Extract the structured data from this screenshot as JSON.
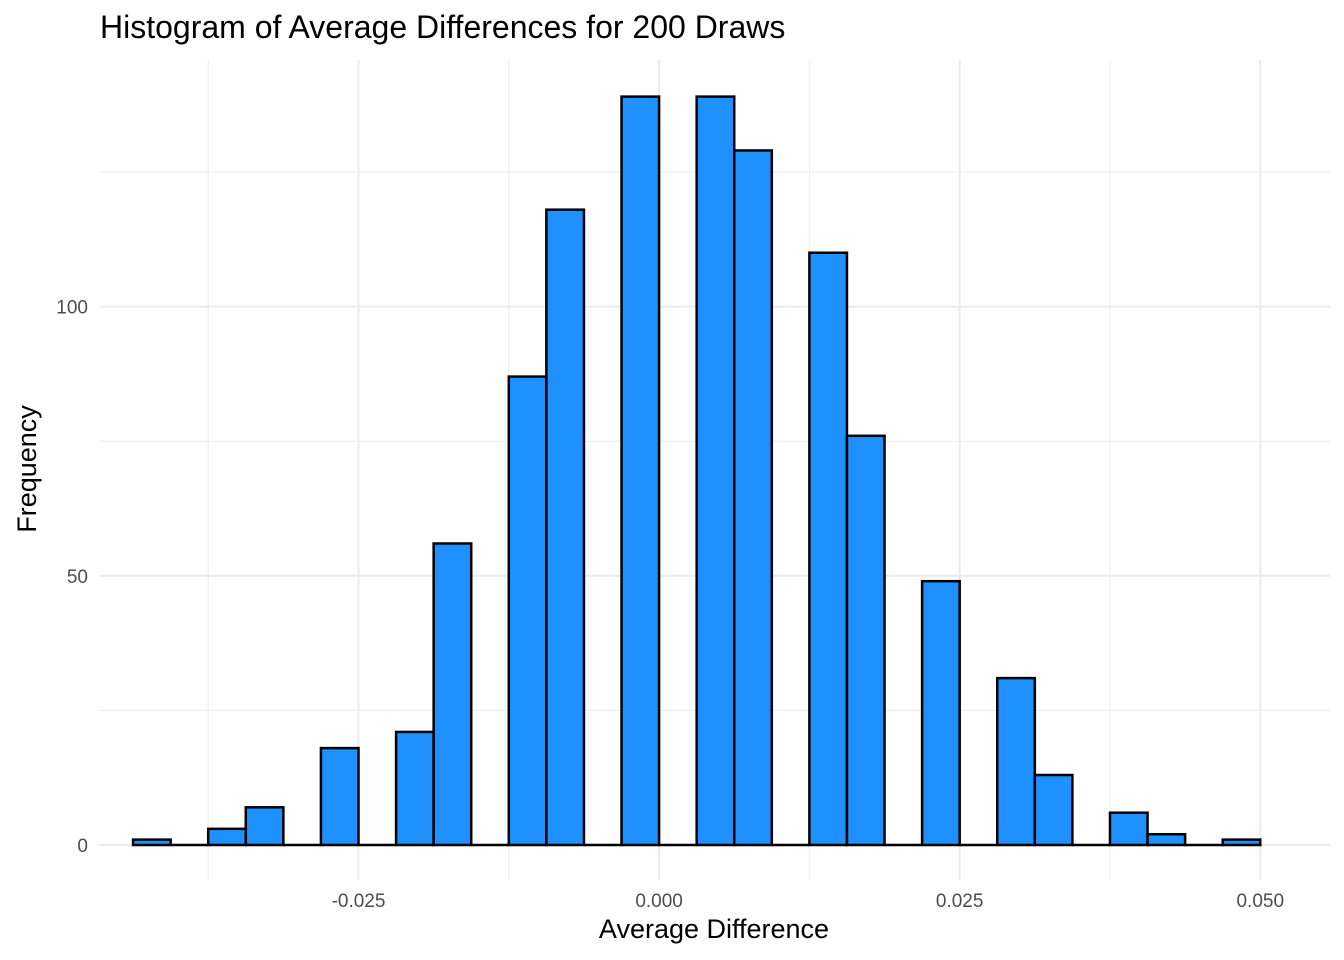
{
  "chart_data": {
    "type": "bar",
    "title": "Histogram of Average Differences for 200 Draws",
    "xlabel": "Average Difference",
    "ylabel": "Frequency",
    "bin_width": 0.003125,
    "bins": [
      {
        "start": -0.04375,
        "end": -0.040625,
        "count": 1
      },
      {
        "start": -0.040625,
        "end": -0.0375,
        "count": 0
      },
      {
        "start": -0.0375,
        "end": -0.034375,
        "count": 3
      },
      {
        "start": -0.034375,
        "end": -0.03125,
        "count": 7
      },
      {
        "start": -0.03125,
        "end": -0.028125,
        "count": 0
      },
      {
        "start": -0.028125,
        "end": -0.025,
        "count": 18
      },
      {
        "start": -0.025,
        "end": -0.021875,
        "count": 0
      },
      {
        "start": -0.021875,
        "end": -0.01875,
        "count": 21
      },
      {
        "start": -0.01875,
        "end": -0.015625,
        "count": 56
      },
      {
        "start": -0.015625,
        "end": -0.0125,
        "count": 0
      },
      {
        "start": -0.0125,
        "end": -0.009375,
        "count": 87
      },
      {
        "start": -0.009375,
        "end": -0.00625,
        "count": 118
      },
      {
        "start": -0.00625,
        "end": -0.003125,
        "count": 0
      },
      {
        "start": -0.003125,
        "end": 0.0,
        "count": 139
      },
      {
        "start": 0.0,
        "end": 0.003125,
        "count": 0
      },
      {
        "start": 0.003125,
        "end": 0.00625,
        "count": 139
      },
      {
        "start": 0.00625,
        "end": 0.009375,
        "count": 129
      },
      {
        "start": 0.009375,
        "end": 0.0125,
        "count": 0
      },
      {
        "start": 0.0125,
        "end": 0.015625,
        "count": 110
      },
      {
        "start": 0.015625,
        "end": 0.01875,
        "count": 76
      },
      {
        "start": 0.01875,
        "end": 0.021875,
        "count": 0
      },
      {
        "start": 0.021875,
        "end": 0.025,
        "count": 49
      },
      {
        "start": 0.025,
        "end": 0.028125,
        "count": 0
      },
      {
        "start": 0.028125,
        "end": 0.03125,
        "count": 31
      },
      {
        "start": 0.03125,
        "end": 0.034375,
        "count": 13
      },
      {
        "start": 0.034375,
        "end": 0.0375,
        "count": 0
      },
      {
        "start": 0.0375,
        "end": 0.040625,
        "count": 6
      },
      {
        "start": 0.040625,
        "end": 0.04375,
        "count": 2
      },
      {
        "start": 0.04375,
        "end": 0.046875,
        "count": 0
      },
      {
        "start": 0.046875,
        "end": 0.05,
        "count": 1
      }
    ],
    "xlim": [
      -0.0465,
      0.0558
    ],
    "ylim": [
      -6.5,
      145.8
    ],
    "x_ticks": [
      {
        "value": -0.025,
        "label": "-0.025"
      },
      {
        "value": 0.0,
        "label": "0.000"
      },
      {
        "value": 0.025,
        "label": "0.025"
      },
      {
        "value": 0.05,
        "label": "0.050"
      }
    ],
    "x_minor_ticks": [
      -0.0375,
      -0.0125,
      0.0125,
      0.0375
    ],
    "y_ticks": [
      {
        "value": 0,
        "label": "0"
      },
      {
        "value": 50,
        "label": "50"
      },
      {
        "value": 100,
        "label": "100"
      }
    ],
    "y_minor_ticks": [
      25,
      75,
      125
    ],
    "grid": true,
    "legend": "none",
    "colors": {
      "bar_fill": "#1e90ff",
      "bar_stroke": "#000000",
      "grid": "#ebebeb",
      "tick_text": "#4d4d4d",
      "text": "#000000",
      "background": "#ffffff"
    }
  }
}
